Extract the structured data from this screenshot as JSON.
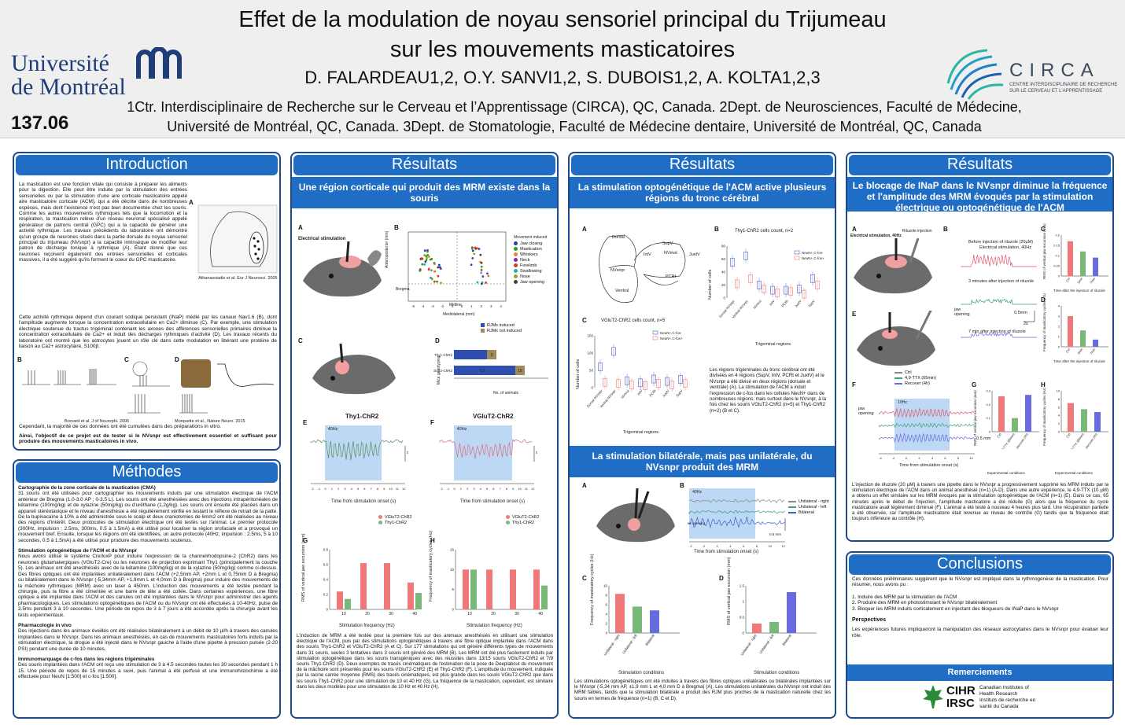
{
  "header": {
    "title1": "Effet de la modulation de noyau sensoriel principal du Trijumeau",
    "title2": "sur les mouvements masticatoires",
    "authors": "D. FALARDEAU1,2, O.Y. SANVI1,2, S. DUBOIS1,2, A. KOLTA1,2,3",
    "affil1": "1Ctr. Interdisciplinaire de Recherche sur le Cerveau et l’Apprentissage (CIRCA), QC, Canada. 2Dept. de Neurosciences, Faculté de Médecine,",
    "affil2": "Université de Montréal, QC, Canada. 3Dept. de Stomatologie, Faculté de Médecine dentaire, Université de Montréal, QC, Canada",
    "poster_number": "137.06",
    "udem_line1": "Université",
    "udem_line2": "de Montréal",
    "circa": "CIRCA",
    "circa_sub": "CENTRE INTERDISCIPLINAIRE DE RECHERCHE SUR LE CERVEAU ET L'APPRENTISSAGE"
  },
  "intro": {
    "title": "Introduction",
    "p1": "La mastication est une fonction vitale qui consiste à préparer les aliments pour la digestion. Elle peut être induite par la stimulation des entrées sensorielles ou par la stimulation d'une aire corticale masticatoire appelé aire masticatoire corticale (ACM), qui a été décrite dans de nombreuses espèces, mais dont l'existence n'est pas bien documentée chez les souris. Comme les autres mouvements rythmiques tels que la locomotion et la respiration, la mastication relève d'un réseau neuronal spécialisé appelé générateur de patrons central (GPC) qui a la capacité de générer une activité rythmique. Les travaux précédents du laboratoire ont démontré qu'un groupe de neurones situés dans la partie dorsale du noyau sensoriel principal du trijumeau (NVsnpr) a la capacité intrinsèque de modifier leur patron de décharge tonique à rythmique (A). Étant donné que ces neurones reçoivent également des entrées sensorielles et corticales massives, il a été suggéré qu'ils forment le coeur du GPC masticatoire.",
    "p2": "Cette activité rythmique dépend d'un courant sodique persistant (INaP) médié par les canaux Nav1.6 (B), dont l'amplitude augmente lorsque la concentration extracellulaire en Ca2+ diminue (C). Par exemple, une stimulation électrique soutenue du tractus trigéminal contenant les axones des afférences sensorielles primaires diminue la concentration extracellulaire de Ca2+ et induit des décharges rythmiques d'activité (D). Les travaux récents du laboratoire ont montré que les astrocytes jouent un rôle clé dans cette modulation en libérant une protéine de liaison au Ca2+ astrocytaire, S100β.",
    "cite1": "Athanassiadis et al. Eur J Neurosci. 2005",
    "cite2": "Brocard et al. J of Neurophi. 2006",
    "cite3": "Morquette et al., Nature Neuro. 2015",
    "p3": "Cependant, la majorité de ces données ont été cumulées dans des préparations in vitro.",
    "p4": "Ainsi, l'objectif de ce projet est de tester si le NVsnpr est effectivement essentiel et suffisant pour produire des mouvements masticatoires in vivo."
  },
  "methods": {
    "title": "Méthodes",
    "h1": "Cartographie de la zone corticale de la mastication (CMA)",
    "t1": "31 souris ont été utilisées pour cartographier les mouvements induits par une stimulation électrique de l'ACM antérieur de Bregma (1.0-3.0 AP ; 0-3.5 L). Les souris ont été anesthésiées avec des injections intrapéritonéales de kétamine (100mg/kg) et de xylazine (50mg/kg) ou d'uréthane (1,2g/kg). Les souris ont ensuite été placées dans un appareil stéréotaxique et le niveau d'anesthésie a été régulièrement vérifié en testant le réflexe de retrait de la patte. De la bupivacaïne à 10% a été administrée sous le scalp et deux craniotomies de 6mm2 ont été réalisées au niveau des régions d'intérêt. Deux protocoles de stimulation électrique ont été testés sur l'animal. Le premier protocole (300Hz, impulsion : 2.5ms, 300ms, 0.5 à 1.5mA) a été utilisé pour localiser la région orofaciale et a provoqué un mouvement bref. Ensuite, lorsque les régions ont été identifiées, un autre protocole (40Hz, impulsion : 2.5ms, 5 à 10 secondes, 0.5 à 1.5mA) a été utilisé pour produire des mouvements soutenus.",
    "h2": "Stimulation optogénétique de l'ACM et du NVsnpr",
    "t2": "Nous avons utilisé le système Cre/loxP pour induire l'expression de la channelrhodopsine-2 (ChR2) dans les neurones glutamatergiques (VGluT2-Cre) ou les neurones de projection exprimant Thy1 (principalement la couche 5). Les animaux ont été anesthésiés avec de la kétamine (100mg/kg) et de la xylazine (50mg/kg) comme ci-dessus. Des fibres optiques ont été implantées unilatéralement dans l'ACM (+2,5mm AP, +2mm L et 0,75mm D à Bregma) ou bilatéralement dans le NVsnpr (-5,34mm AP, +1,9mm L et 4,0mm D à Bregma) pour induire des mouvements de la mâchoire rythmiques (MRM) avec un laser à 450nm. L'induction des mouvements a été testée pendant la chirurgie, puis la fibre a été cimentée et une barre de tête a été collée. Dans certaines expériences, une fibre optique a été implantée dans l'ACM et des canules ont été implantées dans le NVsnpr pour administrer des agents pharmacologiques. Les stimulations optogénétiques de l'ACM ou du NVsnpr ont été effectuées à 10-40Hz, pulse de 2.5ms pendant 3 à 10 secondes. Une période de repos de 3 à 7 jours a été accordée après la chirurgie avant les tests expérimentaux.",
    "h3": "Pharmacologie in vivo",
    "t3": "Des injections dans les animaux éveillés ont été réalisées bilatéralement à un débit de 10 µl/h à travers des canules implantées dans le NVsnpr. Dans les animaux anesthésiés, en cas de mouvements masticatoires forts induits par la stimulation électrique, la drogue a été injecté dans le NVsnpr gauche à l'aide d'une pipette à pression pulsée (2-20 PSI) pendant une durée de 10 minutes.",
    "h4": "Immunomarquage de c-fos dans les régions trigéminales",
    "t4": "Des souris implantées dans l'ACM ont reçu une stimulation de 3 à 4.5 secondes toutes les 30 secondes pendant 1 h 15. Une période de repos de 15 minutes a suivi, puis l'animal a été perfusé et une immunohistochimie a été effectuée pour NeuN [1:500] et c-fos [1:500]."
  },
  "res1": {
    "title": "Résultats",
    "sub": "Une région corticale qui produit des MRM existe dans la souris",
    "figA": "Electrical stimulation",
    "legend_title": "Movement induced",
    "legend": [
      "Jaw closing",
      "Mastication",
      "Whiskers",
      "Neck",
      "Forelimb",
      "Swallowing",
      "Nose",
      "Jaw opening"
    ],
    "y_label": "Anteroposterior (mm)",
    "x_label": "Mediolateral (mm)",
    "bregma": "Bregma",
    "midline": "Midline",
    "bars_legend": [
      "RJMs induced",
      "RJMs not induced"
    ],
    "bars_y": "Mice genotyping",
    "bars_x": "No. of animals",
    "bars_rows": [
      "Thy1-ChR2",
      "VGluT2-ChR2"
    ],
    "bars_vals": [
      "2",
      "13",
      "15"
    ],
    "E_title": "Thy1-ChR2",
    "F_title": "VGluT2-ChR2",
    "hz": "40Hz",
    "jaw": "jaw opening",
    "scale": "0.5mm",
    "time_x": "Time from stimulation onset (s)",
    "G_y": "RMS of vertical jaw excursion (mm)",
    "H_y": "Frequency of masticatory cycles (Hz)",
    "stim_x": "Stimulation frequency (Hz)",
    "legend_GH": [
      "VGluT2-ChR2",
      "Thy1-ChR2"
    ],
    "text": "L'induction de MRM a été testée pour la première fois sur des animaux anesthésiés en utilisant une stimulation électrique de l'ACM, puis par des stimulations optogénétiques à travers une fibre optique implantée dans l'ACM dans des souris Thy1-ChR2 et VGluT2-ChR2 (A et C). Sur 177 stimulations qui ont généré différents types de mouvements dans 31 souris, seules 3 tentatives dans 3 souris ont généré des MRM (B). Les MRM ont été plus facilement induits par stimulation optogénétique dans les souris transgéniques avec des réussites dans 13/15 souris VGluT2-ChR2 et 7/9 souris Thy1-ChR2 (D). Deux exemples de tracés cinématiques de l'estimation de la pose de Deeplabcut du mouvement de la mâchoire sont présentés pour les souris VGluT2-ChR2 (E) et Thy1-ChR2 (F). L'amplitude du mouvement, indiquée par la racine carrée moyenne (RMS) des tracés cinématiques, est plus grande dans les souris VGluT2-ChR2 que dans les souris Thy1-ChR2 pour une stimulation de 10 et 40 Hz (G). La fréquence de la mastication, cependant, est similaire dans les deux modèles pour une stimulation de 10 Hz et 40 Hz (H)."
  },
  "res2": {
    "title": "Résultats",
    "sub1": "La stimulation optogénétique de l'ACM active plusieurs régions du tronc cérébral",
    "regions": [
      "SupV",
      "Dorsal",
      "IntV",
      "NVmot",
      "JuxtV",
      "NVsnpr",
      "PCRt",
      "Ventral"
    ],
    "B_title": "Thy1-ChR2 cells count, n=2",
    "C_title": "VGluT2-ChR2 cells count, n=5",
    "legend": [
      "NeuN+,C-fos-",
      "NeuN+,C-fos+"
    ],
    "y_label": "Number of cells",
    "x_label": "Trigeminal regions",
    "xticks": [
      "Dorsal NVsnpr",
      "Ventral NVsnpr",
      "NVmot",
      "IntV",
      "PCRt",
      "JuxtV",
      "SupV"
    ],
    "text1": "Les régions trigéminales du tronc cérébral ont été divisées en 4 régions (SupV, IntV, PCRt et JuxtV) et le NVsnpr a été divisé en deux régions (dorsale et ventrale) (A). La stimulation de l'ACM a induit l'expression de c-fos dans les cellules NeuN+ dans de nombreuses régions, mais surtout dans le NVsnpr, à la fois chez les souris VGluT2-ChR2 (n=5) et Thy1-ChR2 (n=2) (B et C).",
    "sub2": "La stimulation bilatérale, mais pas unilatérale, du NVsnpr produit des MRM",
    "hz": "40Hz",
    "trace_legend": [
      "Unilateral - right",
      "Unilateral - left",
      "Bilateral"
    ],
    "jaw": "jaw opening",
    "scale": "0.5 mm",
    "time_x": "Time from stimulation onset (s)",
    "C_y": "Frequency of masticatory cycles (Hz)",
    "D_y": "RMS of vertical jaw excursion (mm)",
    "cond_x": "Stimulation conditions",
    "conds": [
      "Unilateral - right",
      "Unilateral - left",
      "Bilateral"
    ],
    "text2": "Les stimulations optogénétiques ont été induites à travers des fibres optiques unilatérales ou bilatérales implantées sur le NVsnpr (-5,34 mm AP, ±1,9 mm L et 4,0 mm D à Bregma) (A). Les stimulations unilatérales du NVsnpr ont induit des MRM faibles, tandis que la stimulation bilatérale a produit des RJM plus proches de la mastication naturelle chez les souris en termes de fréquence (n=1) (B, C et D)."
  },
  "res3": {
    "title": "Résultats",
    "sub": "Le blocage de INaP dans le NVsnpr diminue la fréquence et l'amplitude des MRM évoqués par la stimulation électrique ou optogénétique de l'ACM",
    "A_label1": "Riluzole injection",
    "A_label2": "Electrical stimulation, 40Hz",
    "B_t1": "Before injection of riluzole (20µM)",
    "B_t1b": "Electrical stimulation, 40Hz",
    "B_t2": "3 minutes after injection of riluzole",
    "B_t3": "7 min after injection of riluzole",
    "jaw": "jaw opening",
    "scale": "0.5mm",
    "scale_t": "2s",
    "C_y": "RMS of vertical jaw excursion (mm)",
    "D_y": "Frequency of masticatory cycles (Hz)",
    "time_after": "Time after the injection of riluzole",
    "ticks_CD": [
      "Ctrl",
      "3min",
      "7min"
    ],
    "F_legend": [
      "Ctrl",
      "4,9-TTX (65min)",
      "Recover (4h)"
    ],
    "hz": "10Hz",
    "F_scale": "0.5 mm",
    "F_time": "Time from stimulation onset (s)",
    "G_y": "RMS of vertical jaw excursion (mm)",
    "H_y": "Frequency of masticatory cycles (Hz)",
    "exp_cond": "Experimental conditions",
    "ticks_GH": [
      "Ctrl",
      "4,9-TTX (65min)",
      "Recover (4h)"
    ],
    "text": "L'injection de riluzole (20 µM) à travers une pipette dans le NVsnpr a progressivement supprimé les MRM induits par la stimulation électrique de l'ACM dans un animal anesthésié (n=1) (A-D). Dans une autre expérience, le 4,9-TTX (10 µM) a obtenu un effet similaire sur les MRM évoqués par la stimulation optogénétique de l'ACM (n=1) (E). Dans ce cas, 65 minutes après le début de l'injection, l'amplitude masticatoire a été réduite (G) alors que la fréquence du cycle masticatoire avait légèrement diminué (F). L'animal a été testé à nouveau 4 heures plus tard. Une récupération partielle a été observée, car l'amplitude masticatoire était revenue au niveau de contrôle (G) tandis que la fréquence était toujours inférieure au contrôle (H)."
  },
  "concl": {
    "title": "Conclusions",
    "intro": "Ces données préliminaires suggèrent que le NVsnpr est impliqué dans la rythmogenèse de la mastication. Pour résumer, nous avons pu :",
    "items": [
      "1. Induire des MRM par la stimulation de l'ACM",
      "2. Produire des MRM en photostimulant le NVsnpr bilatéralement",
      "3. Bloquer les MRM induits corticalement en injectant des bloqueurs de INaP dans le NVsnpr"
    ],
    "persp_h": "Perspectives",
    "persp": "Les expériences futures impliqueront la manipulation des réseaux astrocytaires dans le NVsnpr pour évaluer leur rôle.",
    "remerc": "Remerciements",
    "cihr": "CIHR",
    "irsc": "IRSC",
    "cihr_en": "Canadian Institutes of Health Research",
    "cihr_fr": "Instituts de recherche en santé du Canada"
  },
  "colors": {
    "blue": "#1f6dc4",
    "red": "#f07878",
    "green": "#7ab87a",
    "navy": "#4a5fc4"
  }
}
